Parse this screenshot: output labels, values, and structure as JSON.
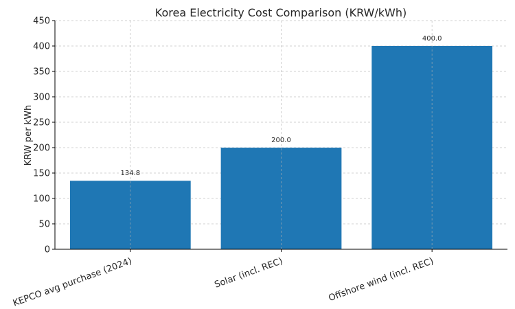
{
  "chart_data": {
    "type": "bar",
    "title": "Korea Electricity Cost Comparison (KRW/kWh)",
    "xlabel": "",
    "ylabel": "KRW per kWh",
    "categories": [
      "KEPCO avg purchase (2024)",
      "Solar (incl. REC)",
      "Offshore wind (incl. REC)"
    ],
    "values": [
      134.8,
      200.0,
      400.0
    ],
    "data_labels": [
      "134.8",
      "200.0",
      "400.0"
    ],
    "ylim": [
      0,
      450
    ],
    "yticks": [
      0,
      50,
      100,
      150,
      200,
      250,
      300,
      350,
      400,
      450
    ],
    "grid": true,
    "bar_color": "#1f77b4"
  }
}
